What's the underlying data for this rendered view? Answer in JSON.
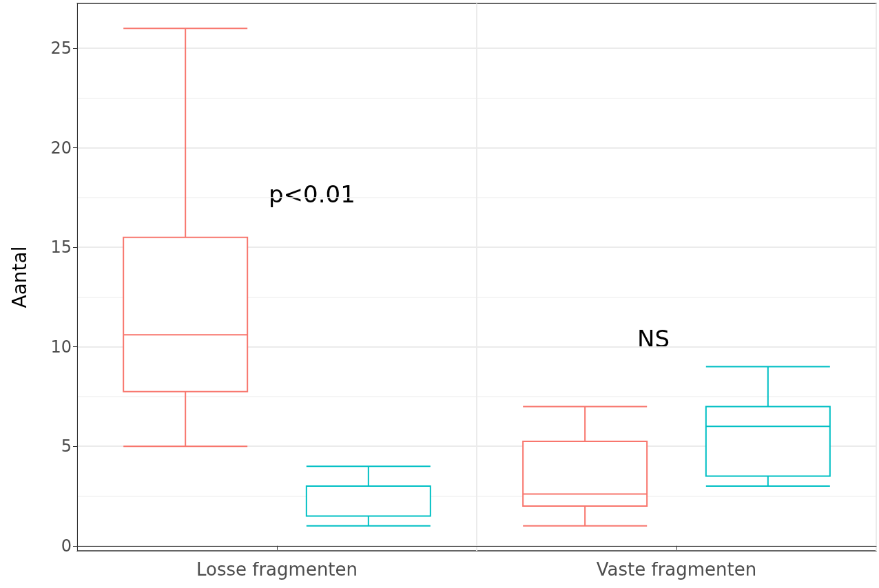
{
  "chart_data": {
    "type": "box",
    "ylabel": "Aantal",
    "categories": [
      "Losse fragmenten",
      "Vaste fragmenten"
    ],
    "series": [
      {
        "color": "#f8766d",
        "boxes": [
          {
            "low": 5,
            "q1": 7.75,
            "median": 10.6,
            "q3": 15.5,
            "high": 26
          },
          {
            "low": 1,
            "q1": 2,
            "median": 2.6,
            "q3": 5.25,
            "high": 7
          }
        ]
      },
      {
        "color": "#00bfc4",
        "boxes": [
          {
            "low": 1,
            "q1": 1.5,
            "median": 3,
            "q3": 3,
            "high": 4
          },
          {
            "low": 3,
            "q1": 3.5,
            "median": 6,
            "q3": 7,
            "high": 9
          }
        ]
      }
    ],
    "ylim": [
      -0.25,
      27.25
    ],
    "yticks": [
      0,
      5,
      10,
      15,
      20,
      25
    ],
    "grid": true,
    "annotations": [
      "p<0.01",
      "NS"
    ]
  }
}
